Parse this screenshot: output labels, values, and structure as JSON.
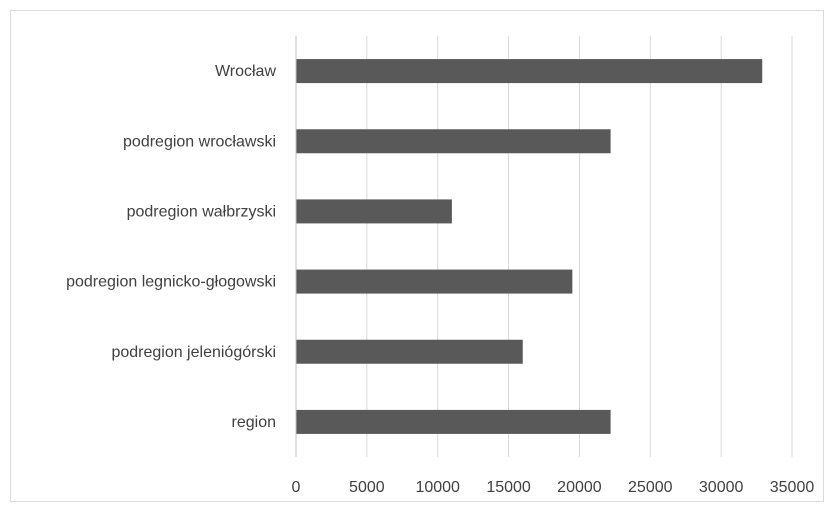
{
  "chart_data": {
    "type": "bar",
    "orientation": "horizontal",
    "categories": [
      "Wrocław",
      "podregion wrocławski",
      "podregion wałbrzyski",
      "podregion legnicko-głogowski",
      "podregion jeleniógórski",
      "region"
    ],
    "values": [
      32900,
      22200,
      11000,
      19500,
      16000,
      22200
    ],
    "xlim": [
      0,
      35000
    ],
    "xticks": [
      "0",
      "5000",
      "10000",
      "15000",
      "20000",
      "25000",
      "30000",
      "35000"
    ],
    "grid": true,
    "legend": "none",
    "bar_color": "#595959"
  }
}
